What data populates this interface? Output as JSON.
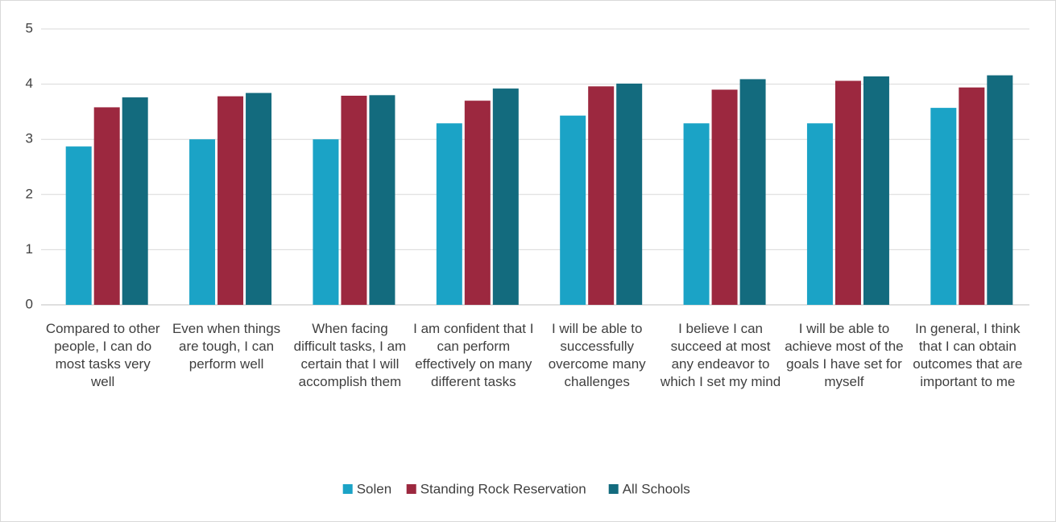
{
  "chart_data": {
    "type": "bar",
    "categories": [
      "Compared to other people, I can do most tasks very well",
      "Even when things are tough, I can perform well",
      "When facing difficult tasks, I am certain that I will accomplish them",
      "I am confident that I can perform effectively on many different tasks",
      "I will be able to successfully overcome many challenges",
      "I believe I can succeed at most any endeavor to which I set my mind",
      "I will be able to achieve most of the goals I have set for myself",
      "In general, I think that I can obtain outcomes that are important to me"
    ],
    "series": [
      {
        "name": "Solen",
        "color": "#1ba3c6",
        "values": [
          2.87,
          3.0,
          3.0,
          3.29,
          3.43,
          3.29,
          3.29,
          3.57
        ]
      },
      {
        "name": "Standing Rock Reservation",
        "color": "#9c283f",
        "values": [
          3.58,
          3.78,
          3.79,
          3.7,
          3.96,
          3.9,
          4.06,
          3.94
        ]
      },
      {
        "name": "All Schools",
        "color": "#136b7e",
        "values": [
          3.76,
          3.84,
          3.8,
          3.92,
          4.01,
          4.09,
          4.14,
          4.16
        ]
      }
    ],
    "ylim": [
      0,
      5
    ],
    "yticks": [
      0,
      1,
      2,
      3,
      4,
      5
    ],
    "grid": true,
    "legend": "bottom"
  }
}
